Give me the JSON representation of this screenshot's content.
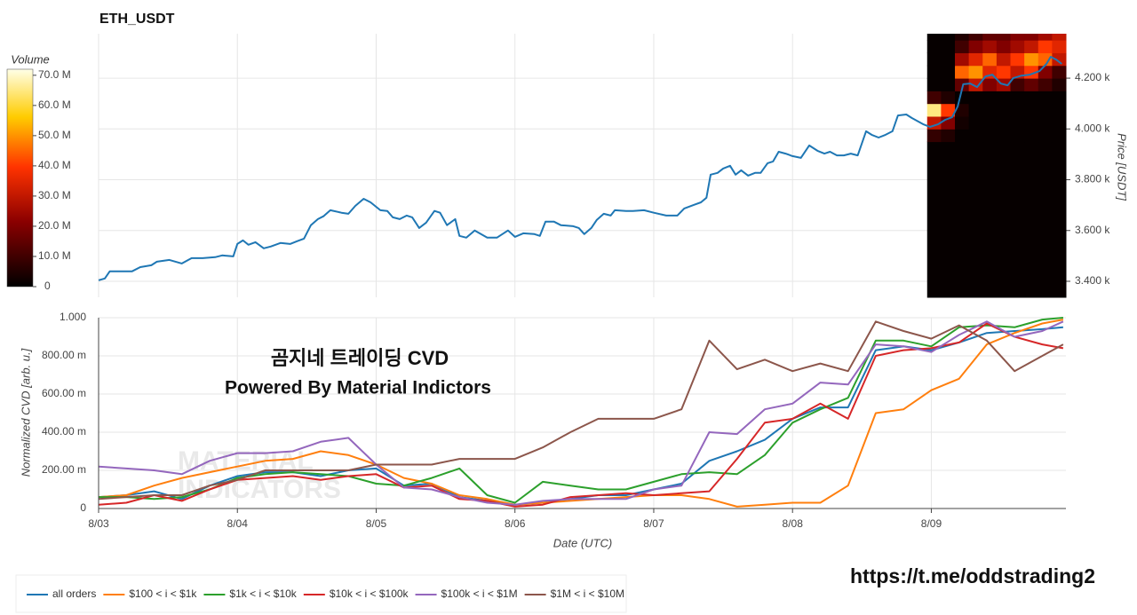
{
  "chart_data": [
    {
      "type": "line",
      "title": "ETH_USDT",
      "ylabel": "Price [USDT]",
      "color": "#1f77b4",
      "x": [
        0,
        0.045,
        0.08,
        0.24,
        0.3,
        0.38,
        0.42,
        0.51,
        0.6,
        0.67,
        0.75,
        0.84,
        0.89,
        0.97,
        1.0,
        1.04,
        1.08,
        1.13,
        1.19,
        1.24,
        1.31,
        1.38,
        1.43,
        1.48,
        1.53,
        1.58,
        1.62,
        1.67,
        1.75,
        1.8,
        1.85,
        1.91,
        1.96,
        2.03,
        2.08,
        2.12,
        2.17,
        2.22,
        2.26,
        2.31,
        2.36,
        2.42,
        2.46,
        2.51,
        2.57,
        2.6,
        2.65,
        2.71,
        2.8,
        2.87,
        2.95,
        3.0,
        3.06,
        3.14,
        3.18,
        3.22,
        3.28,
        3.33,
        3.42,
        3.46,
        3.5,
        3.55,
        3.59,
        3.64,
        3.69,
        3.72,
        3.8,
        3.85,
        3.93,
        4.0,
        4.09,
        4.17,
        4.22,
        4.29,
        4.34,
        4.38,
        4.41,
        4.46,
        4.5,
        4.55,
        4.59,
        4.63,
        4.68,
        4.73,
        4.77,
        4.82,
        4.86,
        4.9,
        4.95,
        5.0,
        5.06,
        5.12,
        5.18,
        5.23,
        5.27,
        5.32,
        5.37,
        5.42,
        5.47,
        5.53,
        5.57,
        5.62,
        5.67,
        5.72,
        5.76,
        5.82,
        5.86,
        5.94,
        5.99,
        6.05,
        6.1,
        6.15,
        6.19,
        6.23,
        6.28,
        6.33,
        6.39,
        6.44,
        6.5,
        6.55,
        6.59,
        6.65,
        6.71,
        6.78,
        6.83,
        6.86,
        6.9,
        6.94
      ],
      "values": [
        3404,
        3411,
        3439,
        3439,
        3456,
        3463,
        3477,
        3484,
        3470,
        3491,
        3491,
        3495,
        3502,
        3498,
        3547,
        3561,
        3544,
        3554,
        3530,
        3537,
        3551,
        3547,
        3558,
        3568,
        3621,
        3645,
        3656,
        3680,
        3670,
        3666,
        3697,
        3725,
        3711,
        3680,
        3677,
        3652,
        3645,
        3659,
        3652,
        3610,
        3631,
        3677,
        3670,
        3621,
        3645,
        3579,
        3572,
        3600,
        3572,
        3572,
        3600,
        3575,
        3589,
        3586,
        3579,
        3635,
        3635,
        3621,
        3617,
        3610,
        3586,
        3610,
        3642,
        3666,
        3659,
        3680,
        3677,
        3677,
        3680,
        3670,
        3659,
        3659,
        3687,
        3701,
        3711,
        3729,
        3820,
        3827,
        3844,
        3855,
        3820,
        3837,
        3816,
        3827,
        3827,
        3865,
        3872,
        3910,
        3903,
        3893,
        3886,
        3935,
        3914,
        3903,
        3910,
        3896,
        3896,
        3903,
        3896,
        3991,
        3977,
        3966,
        3977,
        3991,
        4053,
        4057,
        4043,
        4019,
        4008,
        4019,
        4036,
        4046,
        4088,
        4176,
        4179,
        4165,
        4207,
        4214,
        4179,
        4172,
        4200,
        4210,
        4214,
        4228,
        4256,
        4284,
        4273,
        4256
      ],
      "xlim": [
        0,
        6.97
      ],
      "ylim": [
        3337,
        4375
      ],
      "yticks": [
        {
          "value": 3400,
          "label": "3.400 k"
        },
        {
          "value": 3600,
          "label": "3.600 k"
        },
        {
          "value": 3800,
          "label": "3.800 k"
        },
        {
          "value": 4000,
          "label": "4.000 k"
        },
        {
          "value": 4200,
          "label": "4.200 k"
        }
      ],
      "grid": true,
      "heatmap": {
        "title": "Volume",
        "x_edges": [
          5.97,
          6.07,
          6.17,
          6.27,
          6.37,
          6.47,
          6.57,
          6.67,
          6.77,
          6.87,
          6.97
        ],
        "y_edges": [
          3337,
          3950,
          4000,
          4050,
          4100,
          4150,
          4200,
          4250,
          4300,
          4350,
          4375
        ],
        "z": [
          [
            1000000.0,
            1000000.0,
            1000000.0,
            1000000.0,
            1000000.0,
            1000000.0,
            1000000.0,
            1000000.0,
            1000000.0,
            1000000.0
          ],
          [
            8000000.0,
            5000000.0,
            1000000.0,
            1000000.0,
            1000000.0,
            1000000.0,
            1000000.0,
            1000000.0,
            1000000.0,
            1000000.0
          ],
          [
            30000000.0,
            20000000.0,
            3000000.0,
            1000000.0,
            1000000.0,
            1000000.0,
            1000000.0,
            1000000.0,
            1000000.0,
            1000000.0
          ],
          [
            65000000.0,
            40000000.0,
            5000000.0,
            1000000.0,
            1000000.0,
            1000000.0,
            1000000.0,
            1000000.0,
            1000000.0,
            1000000.0
          ],
          [
            10000000.0,
            5000000.0,
            1000000.0,
            1000000.0,
            1000000.0,
            1000000.0,
            1000000.0,
            1000000.0,
            1000000.0,
            1000000.0
          ],
          [
            1000000.0,
            1000000.0,
            15000000.0,
            30000000.0,
            20000000.0,
            25000000.0,
            10000000.0,
            15000000.0,
            10000000.0,
            5000000.0
          ],
          [
            1000000.0,
            1000000.0,
            45000000.0,
            50000000.0,
            35000000.0,
            40000000.0,
            30000000.0,
            40000000.0,
            20000000.0,
            10000000.0
          ],
          [
            1000000.0,
            1000000.0,
            25000000.0,
            35000000.0,
            45000000.0,
            30000000.0,
            40000000.0,
            50000000.0,
            45000000.0,
            30000000.0
          ],
          [
            1000000.0,
            1000000.0,
            10000000.0,
            20000000.0,
            25000000.0,
            20000000.0,
            25000000.0,
            30000000.0,
            40000000.0,
            35000000.0
          ],
          [
            1000000.0,
            1000000.0,
            5000000.0,
            10000000.0,
            15000000.0,
            15000000.0,
            20000000.0,
            20000000.0,
            25000000.0,
            30000000.0
          ]
        ],
        "zlim": [
          0,
          72000000.0
        ],
        "zticks": [
          0,
          {
            "value": 10000000.0,
            "label": "10.0 M"
          },
          {
            "value": 20000000.0,
            "label": "20.0 M"
          },
          {
            "value": 30000000.0,
            "label": "30.0 M"
          },
          {
            "value": 40000000.0,
            "label": "40.0 M"
          },
          {
            "value": 50000000.0,
            "label": "50.0 M"
          },
          {
            "value": 60000000.0,
            "label": "60.0 M"
          },
          {
            "value": 70000000.0,
            "label": "70.0 M"
          }
        ],
        "colorscale": [
          [
            0,
            "#000000"
          ],
          [
            0.3,
            "#8b0000"
          ],
          [
            0.55,
            "#ff3300"
          ],
          [
            0.78,
            "#ffcc00"
          ],
          [
            1,
            "#ffffe8"
          ]
        ]
      }
    },
    {
      "type": "line",
      "ylabel": "Normalized CVD [arb. u.]",
      "xlabel": "Date (UTC)",
      "x": [
        0,
        0.2,
        0.4,
        0.6,
        0.8,
        1.0,
        1.2,
        1.4,
        1.6,
        1.8,
        2.0,
        2.2,
        2.4,
        2.6,
        2.8,
        3.0,
        3.2,
        3.4,
        3.6,
        3.8,
        4.0,
        4.2,
        4.4,
        4.6,
        4.8,
        5.0,
        5.2,
        5.4,
        5.6,
        5.8,
        6.0,
        6.2,
        6.4,
        6.6,
        6.8,
        6.95
      ],
      "series": [
        {
          "name": "all orders",
          "color": "#1f77b4",
          "values": [
            0.06,
            0.07,
            0.09,
            0.05,
            0.12,
            0.17,
            0.19,
            0.19,
            0.17,
            0.2,
            0.21,
            0.12,
            0.13,
            0.06,
            0.04,
            0.02,
            0.03,
            0.05,
            0.07,
            0.07,
            0.1,
            0.13,
            0.25,
            0.3,
            0.36,
            0.47,
            0.53,
            0.53,
            0.83,
            0.85,
            0.83,
            0.87,
            0.92,
            0.93,
            0.94,
            0.95
          ]
        },
        {
          "name": "$100 < i < $1k",
          "color": "#ff7f0e",
          "values": [
            0.06,
            0.07,
            0.12,
            0.16,
            0.19,
            0.22,
            0.25,
            0.26,
            0.3,
            0.28,
            0.23,
            0.16,
            0.13,
            0.07,
            0.05,
            0.02,
            0.03,
            0.04,
            0.05,
            0.06,
            0.07,
            0.07,
            0.05,
            0.01,
            0.02,
            0.03,
            0.03,
            0.12,
            0.5,
            0.52,
            0.62,
            0.68,
            0.86,
            0.92,
            0.97,
            0.99
          ]
        },
        {
          "name": "$1k < i < $10k",
          "color": "#2ca02c",
          "values": [
            0.06,
            0.06,
            0.05,
            0.06,
            0.1,
            0.16,
            0.18,
            0.19,
            0.18,
            0.17,
            0.13,
            0.12,
            0.16,
            0.21,
            0.07,
            0.03,
            0.14,
            0.12,
            0.1,
            0.1,
            0.14,
            0.18,
            0.19,
            0.18,
            0.28,
            0.45,
            0.52,
            0.58,
            0.88,
            0.88,
            0.85,
            0.95,
            0.96,
            0.95,
            0.99,
            1.0
          ]
        },
        {
          "name": "$10k < i < $100k",
          "color": "#d62728",
          "values": [
            0.02,
            0.03,
            0.07,
            0.04,
            0.1,
            0.15,
            0.16,
            0.17,
            0.15,
            0.17,
            0.18,
            0.11,
            0.12,
            0.05,
            0.04,
            0.01,
            0.02,
            0.06,
            0.07,
            0.08,
            0.07,
            0.08,
            0.09,
            0.26,
            0.45,
            0.47,
            0.55,
            0.47,
            0.8,
            0.83,
            0.84,
            0.87,
            0.97,
            0.9,
            0.86,
            0.84
          ]
        },
        {
          "name": "$100k < i < $1M",
          "color": "#9467bd",
          "values": [
            0.22,
            0.21,
            0.2,
            0.18,
            0.25,
            0.29,
            0.29,
            0.3,
            0.35,
            0.37,
            0.23,
            0.11,
            0.1,
            0.06,
            0.03,
            0.02,
            0.04,
            0.05,
            0.05,
            0.05,
            0.1,
            0.12,
            0.4,
            0.39,
            0.52,
            0.55,
            0.66,
            0.65,
            0.86,
            0.85,
            0.82,
            0.91,
            0.98,
            0.9,
            0.93,
            0.98
          ]
        },
        {
          "name": "$1M < i < $10M",
          "color": "#8c564b",
          "values": [
            0.05,
            0.06,
            0.07,
            0.07,
            0.12,
            0.15,
            0.2,
            0.2,
            0.2,
            0.2,
            0.23,
            0.23,
            0.23,
            0.26,
            0.26,
            0.26,
            0.32,
            0.4,
            0.47,
            0.47,
            0.47,
            0.52,
            0.88,
            0.73,
            0.78,
            0.72,
            0.76,
            0.72,
            0.98,
            0.93,
            0.89,
            0.96,
            0.88,
            0.72,
            0.8,
            0.86
          ]
        }
      ],
      "xlim": [
        0,
        6.97
      ],
      "ylim": [
        0,
        1
      ],
      "xticks": [
        {
          "value": 0,
          "label": "8/03"
        },
        {
          "value": 1,
          "label": "8/04"
        },
        {
          "value": 2,
          "label": "8/05"
        },
        {
          "value": 3,
          "label": "8/06"
        },
        {
          "value": 4,
          "label": "8/07"
        },
        {
          "value": 5,
          "label": "8/08"
        },
        {
          "value": 6,
          "label": "8/09"
        }
      ],
      "yticks": [
        0,
        {
          "value": 0.2,
          "label": "200.00 m"
        },
        {
          "value": 0.4,
          "label": "400.00 m"
        },
        {
          "value": 0.6,
          "label": "600.00 m"
        },
        {
          "value": 0.8,
          "label": "800.00 m"
        },
        {
          "value": 1,
          "label": "1.000"
        }
      ],
      "grid": true,
      "legend": "bottom",
      "annotations": [
        "곰지네 트레이딩 CVD",
        "Powered By Material Indictors"
      ],
      "watermark": [
        "MATERIAL",
        "INDICATORS"
      ]
    }
  ],
  "footer": "https://t.me/oddstrading2"
}
